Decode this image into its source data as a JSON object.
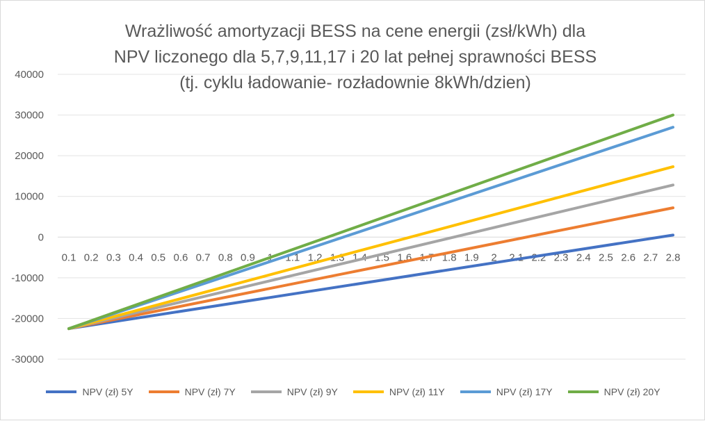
{
  "chart_data": {
    "type": "line",
    "title_lines": [
      "Wrażliwość amortyzacji BESS na cene energii (zsł/kWh) dla",
      "NPV  liczonego dla 5,7,9,11,17 i 20 lat pełnej sprawności BESS",
      "(tj. cyklu ładowanie- rozładownie 8kWh/dzien)"
    ],
    "xlabel": "",
    "ylabel": "",
    "ylim": [
      -30000,
      40000
    ],
    "yticks": [
      40000,
      30000,
      20000,
      10000,
      0,
      -10000,
      -20000,
      -30000
    ],
    "x": [
      "0.1",
      "0.2",
      "0.3",
      "0.4",
      "0.5",
      "0.6",
      "0.7",
      "0.8",
      "0.9",
      "1",
      "1.1",
      "1.2",
      "1.3",
      "1.4",
      "1.5",
      "1.6",
      "1.7",
      "1.8",
      "1.9",
      "2",
      "2.1",
      "2.2",
      "2.3",
      "2.4",
      "2.5",
      "2.6",
      "2.7",
      "2.8"
    ],
    "x_start": 0.1,
    "x_end": 2.8,
    "grid": true,
    "legend_position": "bottom",
    "series": [
      {
        "name": "NPV (zł) 5Y",
        "color": "#4472C4",
        "start": -22500,
        "end": 500
      },
      {
        "name": "NPV (zł) 7Y",
        "color": "#ED7D31",
        "start": -22500,
        "end": 7200
      },
      {
        "name": "NPV (zł) 9Y",
        "color": "#A5A5A5",
        "start": -22500,
        "end": 12800
      },
      {
        "name": "NPV (zł) 11Y",
        "color": "#FFC000",
        "start": -22500,
        "end": 17300
      },
      {
        "name": "NPV (zł) 17Y",
        "color": "#5B9BD5",
        "start": -22500,
        "end": 27000
      },
      {
        "name": "NPV (zł) 20Y",
        "color": "#70AD47",
        "start": -22500,
        "end": 30000
      }
    ]
  }
}
